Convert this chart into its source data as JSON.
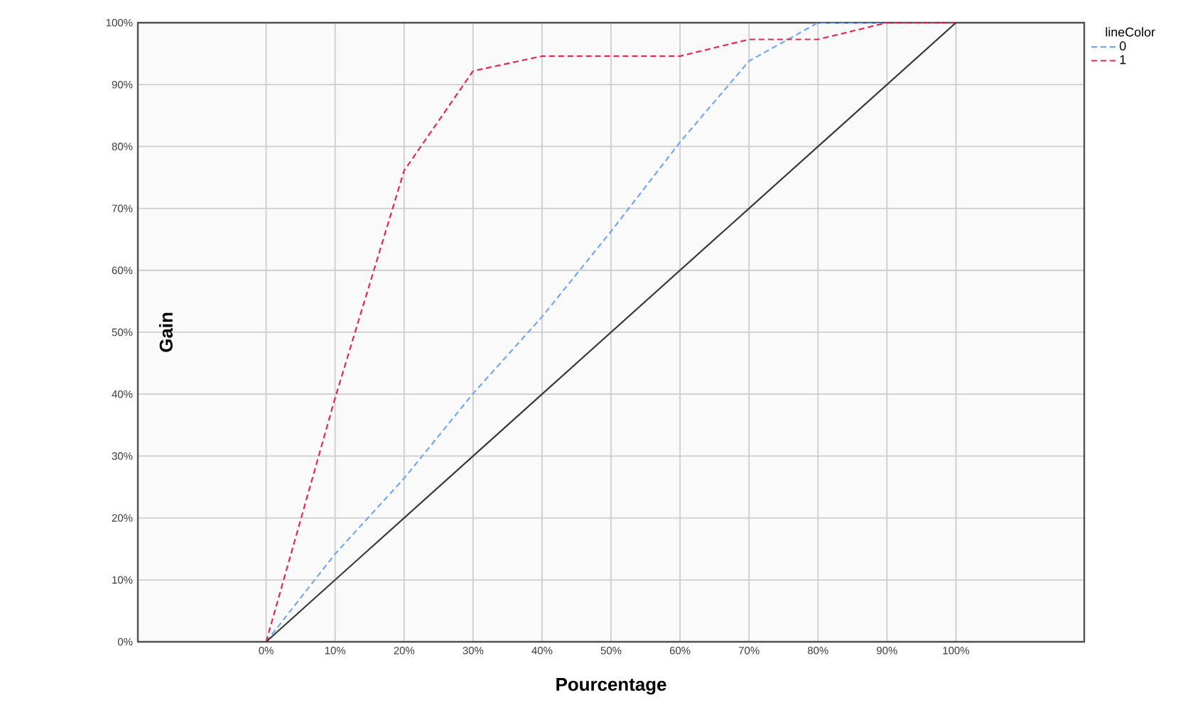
{
  "chart_data": {
    "type": "line",
    "xlabel": "Pourcentage",
    "ylabel": "Gain",
    "legend_title": "lineColor",
    "x": [
      0,
      10,
      20,
      30,
      40,
      50,
      60,
      70,
      80,
      90,
      100
    ],
    "series": [
      {
        "name": "0",
        "color": "#6fa8f5",
        "line_style": "dashed",
        "values": [
          0,
          14.2,
          26.4,
          40.1,
          52.5,
          66.3,
          80.7,
          93.8,
          100,
          100,
          100
        ]
      },
      {
        "name": "1",
        "color": "#e8264f",
        "line_style": "dashed",
        "values": [
          0,
          39.4,
          76.1,
          92.2,
          94.6,
          94.6,
          94.6,
          97.3,
          97.3,
          100,
          100
        ]
      },
      {
        "color": "#3a3a3a",
        "line_style": "solid",
        "values": [
          0,
          10,
          20,
          30,
          40,
          50,
          60,
          70,
          80,
          90,
          100
        ]
      }
    ],
    "xlim": [
      -18.6,
      118.6
    ],
    "ylim": [
      0,
      100
    ],
    "xticks": [
      {
        "value": 0,
        "label": "0%"
      },
      {
        "value": 10,
        "label": "10%"
      },
      {
        "value": 20,
        "label": "20%"
      },
      {
        "value": 30,
        "label": "30%"
      },
      {
        "value": 40,
        "label": "40%"
      },
      {
        "value": 50,
        "label": "50%"
      },
      {
        "value": 60,
        "label": "60%"
      },
      {
        "value": 70,
        "label": "70%"
      },
      {
        "value": 80,
        "label": "80%"
      },
      {
        "value": 90,
        "label": "90%"
      },
      {
        "value": 100,
        "label": "100%"
      }
    ],
    "yticks": [
      {
        "value": 0,
        "label": "0%"
      },
      {
        "value": 10,
        "label": "10%"
      },
      {
        "value": 20,
        "label": "20%"
      },
      {
        "value": 30,
        "label": "30%"
      },
      {
        "value": 40,
        "label": "40%"
      },
      {
        "value": 50,
        "label": "50%"
      },
      {
        "value": 60,
        "label": "60%"
      },
      {
        "value": 70,
        "label": "70%"
      },
      {
        "value": 80,
        "label": "80%"
      },
      {
        "value": 90,
        "label": "90%"
      },
      {
        "value": 100,
        "label": "100%"
      }
    ],
    "grid": true,
    "legend": "top right",
    "marker": "none"
  }
}
